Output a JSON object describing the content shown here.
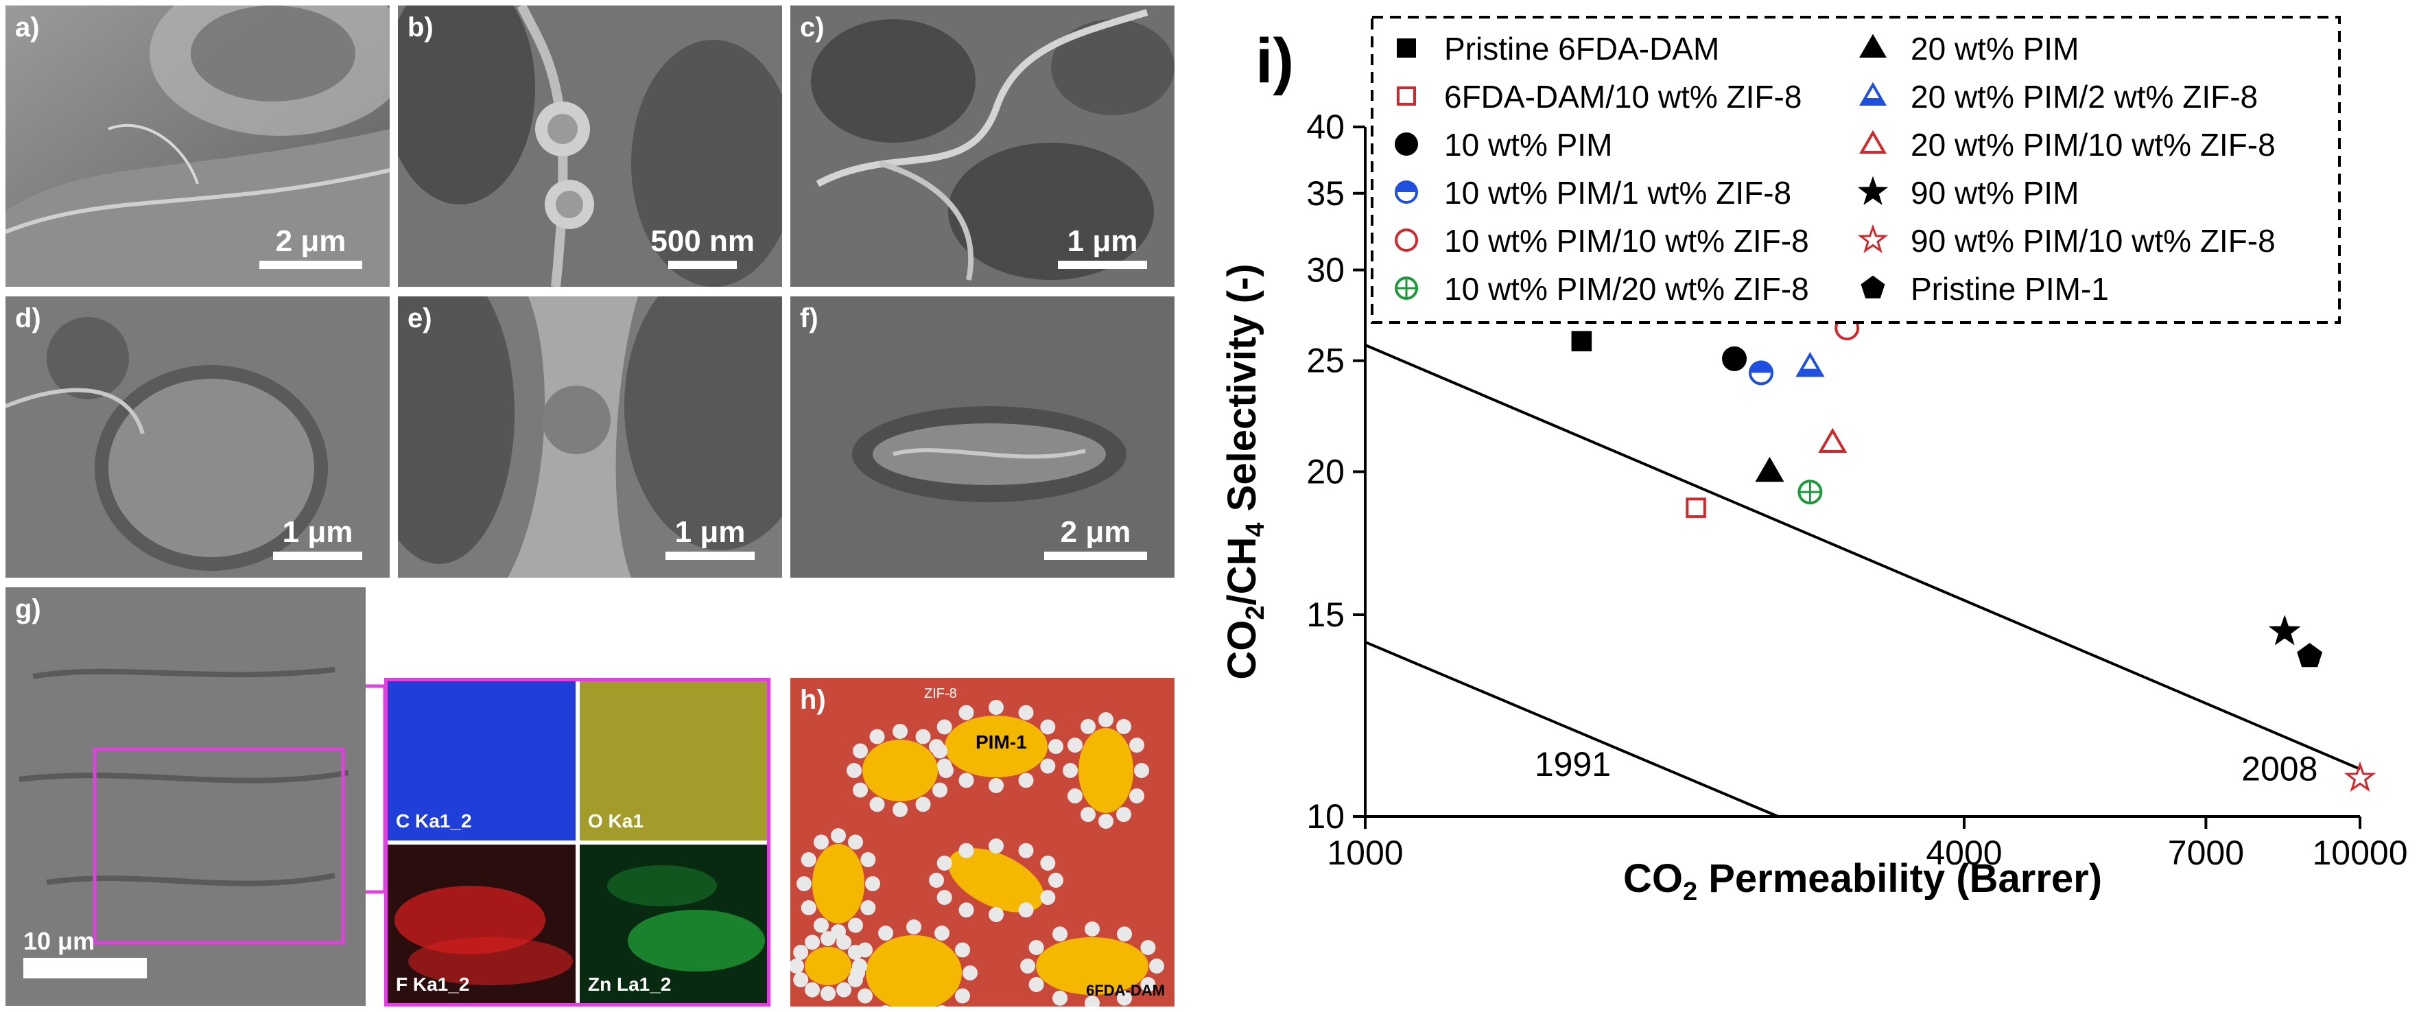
{
  "panels": {
    "a": {
      "label": "a)",
      "scale": "2 μm"
    },
    "b": {
      "label": "b)",
      "scale": "500 nm"
    },
    "c": {
      "label": "c)",
      "scale": "1 μm"
    },
    "d": {
      "label": "d)",
      "scale": ""
    },
    "e": {
      "label": "e)",
      "scale": "1 μm"
    },
    "f": {
      "label": "f)",
      "scale": "2 μm"
    },
    "d_scale": "1 μm",
    "g": {
      "label": "g)",
      "scale": "10 μm"
    },
    "h": {
      "label": "h)",
      "zif_label": "ZIF-8",
      "pim_label": "PIM-1",
      "matrix_label": "6FDA-DAM"
    }
  },
  "eds_maps": [
    {
      "label": "C Ka1_2",
      "color": "#1f3fd8"
    },
    {
      "label": "O Ka1",
      "color": "#c8c23a"
    },
    {
      "label": "F Ka1_2",
      "color": "#d21e1e"
    },
    {
      "label": "Zn La1_2",
      "color": "#22a83a"
    }
  ],
  "colors": {
    "highlight": "#e040e0",
    "black": "#000000",
    "red": "#d0282c",
    "blue": "#1f4fe0",
    "green": "#1a9a38",
    "matrix": "#c8483a",
    "pim": "#f5b800"
  },
  "chart_data": {
    "type": "scatter",
    "panel_label": "i)",
    "xlabel": "CO2 Permeability (Barrer)",
    "ylabel": "CO2/CH4 Selectivity (-)",
    "xscale": "log",
    "yscale": "log",
    "xlim": [
      1000,
      10000
    ],
    "ylim": [
      10,
      40
    ],
    "xticks": [
      1000,
      4000,
      7000,
      10000
    ],
    "yticks": [
      10,
      15,
      20,
      25,
      30,
      35,
      40
    ],
    "legend_placement": "top",
    "series": [
      {
        "name": "Pristine 6FDA-DAM",
        "marker": "square-filled",
        "color": "#000000",
        "x": 1650,
        "y": 26.0
      },
      {
        "name": "6FDA-DAM/10 wt% ZIF-8",
        "marker": "square-open",
        "color": "#d0282c",
        "x": 2150,
        "y": 18.6
      },
      {
        "name": "10 wt% PIM",
        "marker": "circle-filled",
        "color": "#000000",
        "x": 2350,
        "y": 25.1
      },
      {
        "name": "10 wt% PIM/1 wt% ZIF-8",
        "marker": "circle-half",
        "color": "#1f4fe0",
        "x": 2500,
        "y": 24.4
      },
      {
        "name": "10 wt% PIM/10 wt% ZIF-8",
        "marker": "circle-open",
        "color": "#d0282c",
        "x": 3050,
        "y": 26.7
      },
      {
        "name": "10 wt% PIM/20 wt% ZIF-8",
        "marker": "circle-plus",
        "color": "#1a9a38",
        "x": 2800,
        "y": 19.2
      },
      {
        "name": "20 wt% PIM",
        "marker": "triangle-filled",
        "color": "#000000",
        "x": 2550,
        "y": 20.0
      },
      {
        "name": "20 wt% PIM/2 wt% ZIF-8",
        "marker": "triangle-half",
        "color": "#1f4fe0",
        "x": 2800,
        "y": 24.7
      },
      {
        "name": "20 wt% PIM/10 wt% ZIF-8",
        "marker": "triangle-open",
        "color": "#d0282c",
        "x": 2950,
        "y": 21.2
      },
      {
        "name": "90 wt% PIM",
        "marker": "star-filled",
        "color": "#000000",
        "x": 8400,
        "y": 14.5
      },
      {
        "name": "90 wt% PIM/10 wt% ZIF-8",
        "marker": "star-open",
        "color": "#d0282c",
        "x": 10000,
        "y": 10.8
      },
      {
        "name": "Pristine PIM-1",
        "marker": "pentagon-filled",
        "color": "#000000",
        "x": 8900,
        "y": 13.8
      }
    ],
    "upper_bounds": [
      {
        "label": "1991",
        "points": [
          [
            1000,
            14.2
          ],
          [
            2600,
            10.0
          ]
        ]
      },
      {
        "label": "2008",
        "points": [
          [
            1000,
            25.8
          ],
          [
            10000,
            11.0
          ]
        ]
      }
    ]
  }
}
